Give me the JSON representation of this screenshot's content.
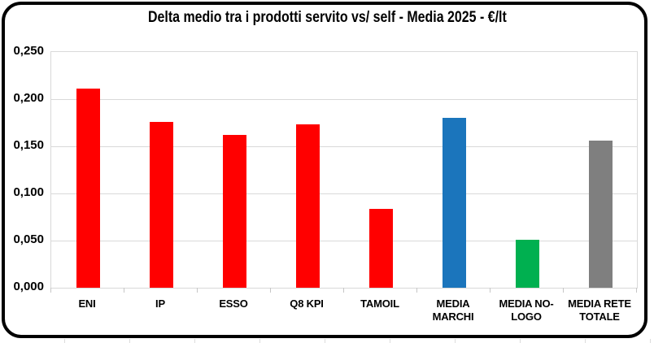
{
  "chart_data": {
    "type": "bar",
    "title": "Delta medio tra i prodotti servito vs/ self - Media 2025 - €/lt",
    "categories": [
      "ENI",
      "IP",
      "ESSO",
      "Q8 KPI",
      "TAMOIL",
      "MEDIA\nMARCHI",
      "MEDIA NO-\nLOGO",
      "MEDIA RETE\nTOTALE"
    ],
    "values": [
      0.211,
      0.176,
      0.162,
      0.173,
      0.084,
      0.18,
      0.051,
      0.156
    ],
    "bar_colors": [
      "#FF0000",
      "#FF0000",
      "#FF0000",
      "#FF0000",
      "#FF0000",
      "#1B75BC",
      "#00B050",
      "#7F7F7F"
    ],
    "xlabel": "",
    "ylabel": "",
    "ylim": [
      0,
      0.25
    ],
    "ytick_values": [
      0,
      0.05,
      0.1,
      0.15,
      0.2,
      0.25
    ],
    "ytick_labels": [
      "0,000",
      "0,050",
      "0,100",
      "0,150",
      "0,200",
      "0,250"
    ],
    "grid": "horizontal",
    "legend": "none"
  },
  "colors": {
    "background": "#FFFFFF",
    "frame_border": "#000000",
    "gridline": "#D9D9D9",
    "axis_tick": "#C6C6C6",
    "text": "#000000",
    "bar_red": "#FF0000",
    "bar_blue": "#1B75BC",
    "bar_green": "#00B050",
    "bar_gray": "#7F7F7F"
  }
}
